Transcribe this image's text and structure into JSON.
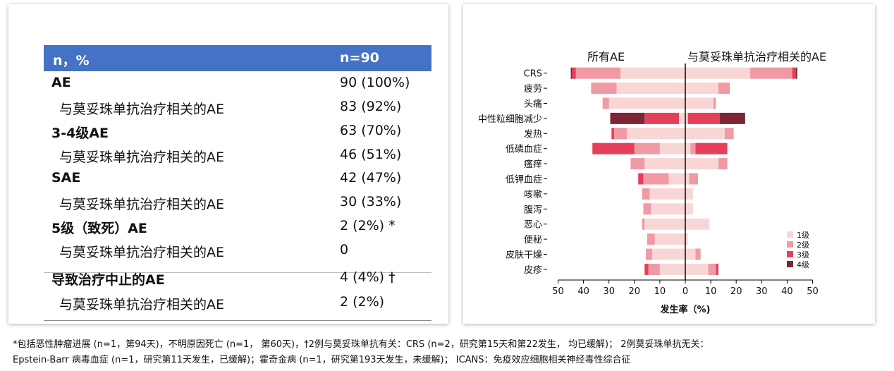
{
  "table": {
    "header": {
      "col1": "n，%",
      "col2": "n=90"
    },
    "rows": [
      {
        "label": "AE",
        "value": "90 (100%)",
        "kind": "main"
      },
      {
        "label": "与莫妥珠单抗治疗相关的AE",
        "value": "83 (92%)",
        "kind": "sub"
      },
      {
        "label": "3-4级AE",
        "value": "63 (70%)",
        "kind": "main"
      },
      {
        "label": "与莫妥珠单抗治疗相关的AE",
        "value": "46 (51%)",
        "kind": "sub"
      },
      {
        "label": "SAE",
        "value": "42 (47%)",
        "kind": "main"
      },
      {
        "label": "与莫妥珠单抗治疗相关的AE",
        "value": "30 (33%)",
        "kind": "sub"
      },
      {
        "label": "5级（致死）AE",
        "value": "2 (2%) *",
        "kind": "main"
      },
      {
        "label": "与莫妥珠单抗治疗相关的AE",
        "value": "0",
        "kind": "sub"
      },
      {
        "label": "导致治疗中止的AE",
        "value": "4 (4%) †",
        "kind": "main"
      },
      {
        "label": "与莫妥珠单抗治疗相关的AE",
        "value": "2 (2%)",
        "kind": "sub"
      }
    ]
  },
  "chart_data": {
    "type": "bar",
    "orientation": "horizontal-butterfly",
    "left_title": "所有AE",
    "right_title": "与莫妥珠单抗治疗相关的AE",
    "xlabel": "发生率（%)",
    "xlim": [
      -50,
      50
    ],
    "xticks": [
      50,
      40,
      30,
      20,
      10,
      0,
      10,
      20,
      30,
      40,
      50
    ],
    "grades": [
      "1级",
      "2级",
      "3级",
      "4级"
    ],
    "colors": {
      "1级": "#f9d6d6",
      "2级": "#f09aa6",
      "3级": "#e53f5c",
      "4级": "#7e2535"
    },
    "legend_position": "lower-right",
    "categories": [
      "CRS",
      "疲劳",
      "头痛",
      "中性粒细胞减少",
      "发热",
      "低磷血症",
      "瘙痒",
      "低钾血症",
      "咳嗽",
      "腹泻",
      "恶心",
      "便秘",
      "皮肤干燥",
      "皮疹"
    ],
    "all_ae": [
      [
        25.5,
        17.5,
        1.5,
        0.5
      ],
      [
        27,
        10,
        0,
        0
      ],
      [
        30,
        2.5,
        0,
        0
      ],
      [
        2.5,
        0,
        13.5,
        13.5
      ],
      [
        23,
        5,
        1,
        0
      ],
      [
        10,
        10,
        16.5,
        0
      ],
      [
        16,
        5.5,
        0,
        0
      ],
      [
        6.5,
        10,
        2,
        0
      ],
      [
        14,
        3,
        0,
        0
      ],
      [
        13.5,
        3,
        0,
        0
      ],
      [
        16,
        1,
        0,
        0
      ],
      [
        12,
        3,
        0,
        0
      ],
      [
        13,
        2.5,
        0,
        0
      ],
      [
        10,
        4.5,
        1.5,
        0
      ]
    ],
    "related_ae": [
      [
        25.5,
        16.5,
        1.5,
        0.5
      ],
      [
        13,
        4.5,
        0,
        0
      ],
      [
        11,
        1,
        0,
        0
      ],
      [
        1,
        0,
        12.5,
        10
      ],
      [
        15.5,
        3.5,
        0,
        0
      ],
      [
        2,
        2,
        12.5,
        0
      ],
      [
        13,
        3.5,
        0,
        0
      ],
      [
        1.5,
        3.5,
        0,
        0
      ],
      [
        3,
        0,
        0,
        0
      ],
      [
        3,
        0,
        0,
        0
      ],
      [
        9.5,
        0,
        0,
        0
      ],
      [
        1,
        0,
        0,
        0
      ],
      [
        4,
        2,
        0,
        0
      ],
      [
        9,
        3,
        1,
        0
      ]
    ]
  },
  "footnote": {
    "line1": "*包括恶性肿瘤进展 (n=1，第94天)，不明原因死亡 (n=1， 第60天)，†2例与莫妥珠单抗有关：CRS (n=2，研究第15天和第22发生， 均已缓解)； 2例莫妥珠单抗无关：",
    "line2": "Epstein-Barr 病毒血症 (n=1，研究第11天发生，已缓解)；霍奇金病 (n=1，研究第193天发生，未缓解)； ICANS：免疫效应细胞相关神经毒性综合征"
  }
}
